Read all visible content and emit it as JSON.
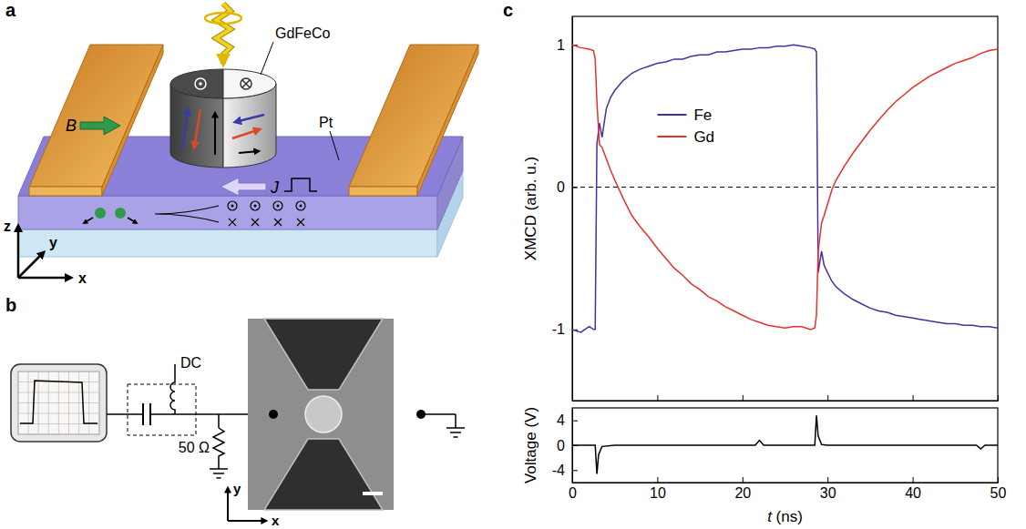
{
  "figure": {
    "panels": [
      {
        "label": "a",
        "labels": {
          "sample": "GdFeCo",
          "layer": "Pt",
          "field": "B",
          "current": "J"
        },
        "axes": {
          "x": "x",
          "y": "y",
          "z": "z"
        }
      },
      {
        "label": "b",
        "labels": {
          "bias_tee": "DC",
          "resistor": "50 Ω"
        },
        "axes": {
          "x": "x",
          "y": "y"
        }
      },
      {
        "label": "c"
      }
    ]
  },
  "chart_data": [
    {
      "type": "line",
      "ylabel": "XMCD (arb. u.)",
      "x": [
        0,
        1,
        2,
        2.5,
        2.7,
        2.9,
        3.2,
        3.5,
        4,
        4.5,
        5,
        6,
        7,
        8,
        9,
        10,
        11,
        12,
        13,
        14,
        15,
        16,
        17,
        18,
        19,
        20,
        21,
        22,
        23,
        24,
        25,
        26,
        27,
        28,
        28.5,
        28.7,
        28.9,
        29.3,
        29.6,
        30,
        30.5,
        31,
        32,
        33,
        34,
        35,
        36,
        37,
        38,
        39,
        40,
        41,
        42,
        43,
        44,
        45,
        46,
        47,
        48,
        49,
        50
      ],
      "series": [
        {
          "name": "Fe",
          "color": "#4a2f9e",
          "values": [
            -1,
            -1.02,
            -0.98,
            -1,
            -1,
            0.3,
            0.45,
            0.35,
            0.55,
            0.63,
            0.68,
            0.75,
            0.8,
            0.83,
            0.85,
            0.87,
            0.88,
            0.9,
            0.9,
            0.92,
            0.93,
            0.93,
            0.95,
            0.95,
            0.96,
            0.97,
            0.97,
            0.98,
            0.98,
            0.99,
            0.99,
            1,
            0.99,
            0.98,
            0.97,
            0.95,
            -0.6,
            -0.45,
            -0.55,
            -0.6,
            -0.66,
            -0.7,
            -0.75,
            -0.79,
            -0.82,
            -0.85,
            -0.87,
            -0.88,
            -0.9,
            -0.91,
            -0.92,
            -0.93,
            -0.94,
            -0.95,
            -0.96,
            -0.96,
            -0.97,
            -0.97,
            -0.98,
            -0.98,
            -0.99
          ]
        },
        {
          "name": "Gd",
          "color": "#e8302a",
          "values": [
            1,
            0.98,
            0.97,
            0.96,
            0.9,
            0.6,
            0.3,
            0.28,
            0.2,
            0.12,
            0.05,
            -0.08,
            -0.2,
            -0.28,
            -0.35,
            -0.43,
            -0.5,
            -0.57,
            -0.62,
            -0.68,
            -0.72,
            -0.77,
            -0.8,
            -0.84,
            -0.87,
            -0.9,
            -0.93,
            -0.95,
            -0.97,
            -0.98,
            -0.99,
            -0.98,
            -0.98,
            -1,
            -0.99,
            -0.9,
            -0.45,
            -0.25,
            -0.2,
            -0.12,
            -0.02,
            0.05,
            0.15,
            0.24,
            0.32,
            0.4,
            0.47,
            0.54,
            0.6,
            0.65,
            0.7,
            0.74,
            0.78,
            0.81,
            0.84,
            0.87,
            0.89,
            0.91,
            0.94,
            0.96,
            0.97
          ]
        }
      ],
      "xlim": [
        0,
        50
      ],
      "xticks": [
        0,
        10,
        20,
        30,
        40,
        50
      ],
      "ylim": [
        -1.5,
        1.2
      ],
      "yticks": [
        -1,
        0,
        1
      ],
      "reference_lines": [
        {
          "value": 0,
          "line_style": "dashed"
        }
      ],
      "legend": "top",
      "tick_labels": "y",
      "grid": false
    },
    {
      "type": "line",
      "xlabel": "t (ns)",
      "ylabel": "Voltage (V)",
      "x": [
        0,
        2,
        2.7,
        2.9,
        3.1,
        3.5,
        5,
        10,
        21.5,
        22,
        22.5,
        28,
        28.5,
        28.7,
        28.9,
        29.3,
        30,
        40,
        47.5,
        48,
        48.5,
        50
      ],
      "series": [
        {
          "color": "#000000",
          "values": [
            0,
            0,
            0,
            -4.6,
            -1.5,
            -0.2,
            0,
            0,
            0,
            0.8,
            0,
            0,
            0,
            4.8,
            1.5,
            0.1,
            0,
            0,
            0,
            -0.6,
            0,
            0
          ]
        }
      ],
      "xlim": [
        0,
        50
      ],
      "xticks": [
        0,
        10,
        20,
        30,
        40,
        50
      ],
      "ylim": [
        -6,
        6
      ],
      "yticks": [
        -4,
        0,
        4
      ],
      "grid": false
    }
  ]
}
